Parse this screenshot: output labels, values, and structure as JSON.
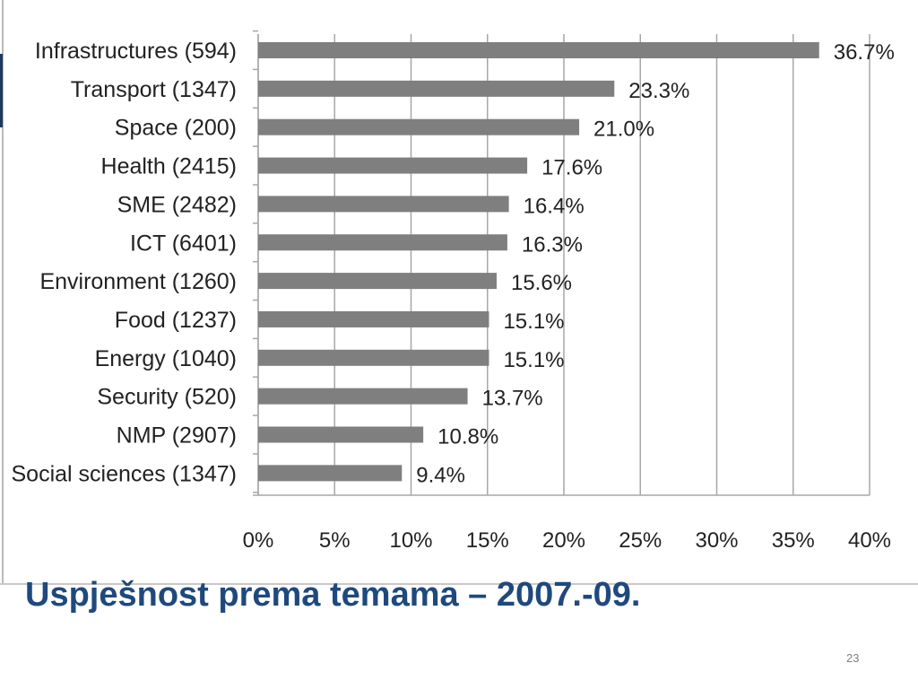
{
  "slide": {
    "title": "Uspješnost prema temama – 2007.-09.",
    "page_number": "23"
  },
  "colors": {
    "bar": "#7f7f7f",
    "grid": "#a7a7a7",
    "title": "#1f497d",
    "accent_marker": "#1f3864"
  },
  "chart_data": {
    "type": "bar",
    "orientation": "horizontal",
    "title": "",
    "xlabel": "",
    "ylabel": "",
    "categories": [
      "Infrastructures (594)",
      "Transport (1347)",
      "Space (200)",
      "Health (2415)",
      "SME (2482)",
      "ICT (6401)",
      "Environment (1260)",
      "Food (1237)",
      "Energy (1040)",
      "Security (520)",
      "NMP (2907)",
      "Social sciences (1347)"
    ],
    "values": [
      36.7,
      23.3,
      21.0,
      17.6,
      16.4,
      16.3,
      15.6,
      15.1,
      15.1,
      13.7,
      10.8,
      9.4
    ],
    "value_labels": [
      "36.7%",
      "23.3%",
      "21.0%",
      "17.6%",
      "16.4%",
      "16.3%",
      "15.6%",
      "15.1%",
      "15.1%",
      "13.7%",
      "10.8%",
      "9.4%"
    ],
    "xlim": [
      0,
      40
    ],
    "xticks": [
      0,
      5,
      10,
      15,
      20,
      25,
      30,
      35,
      40
    ],
    "xtick_labels": [
      "0%",
      "5%",
      "10%",
      "15%",
      "20%",
      "25%",
      "30%",
      "35%",
      "40%"
    ],
    "grid": "vertical",
    "legend": "none"
  }
}
